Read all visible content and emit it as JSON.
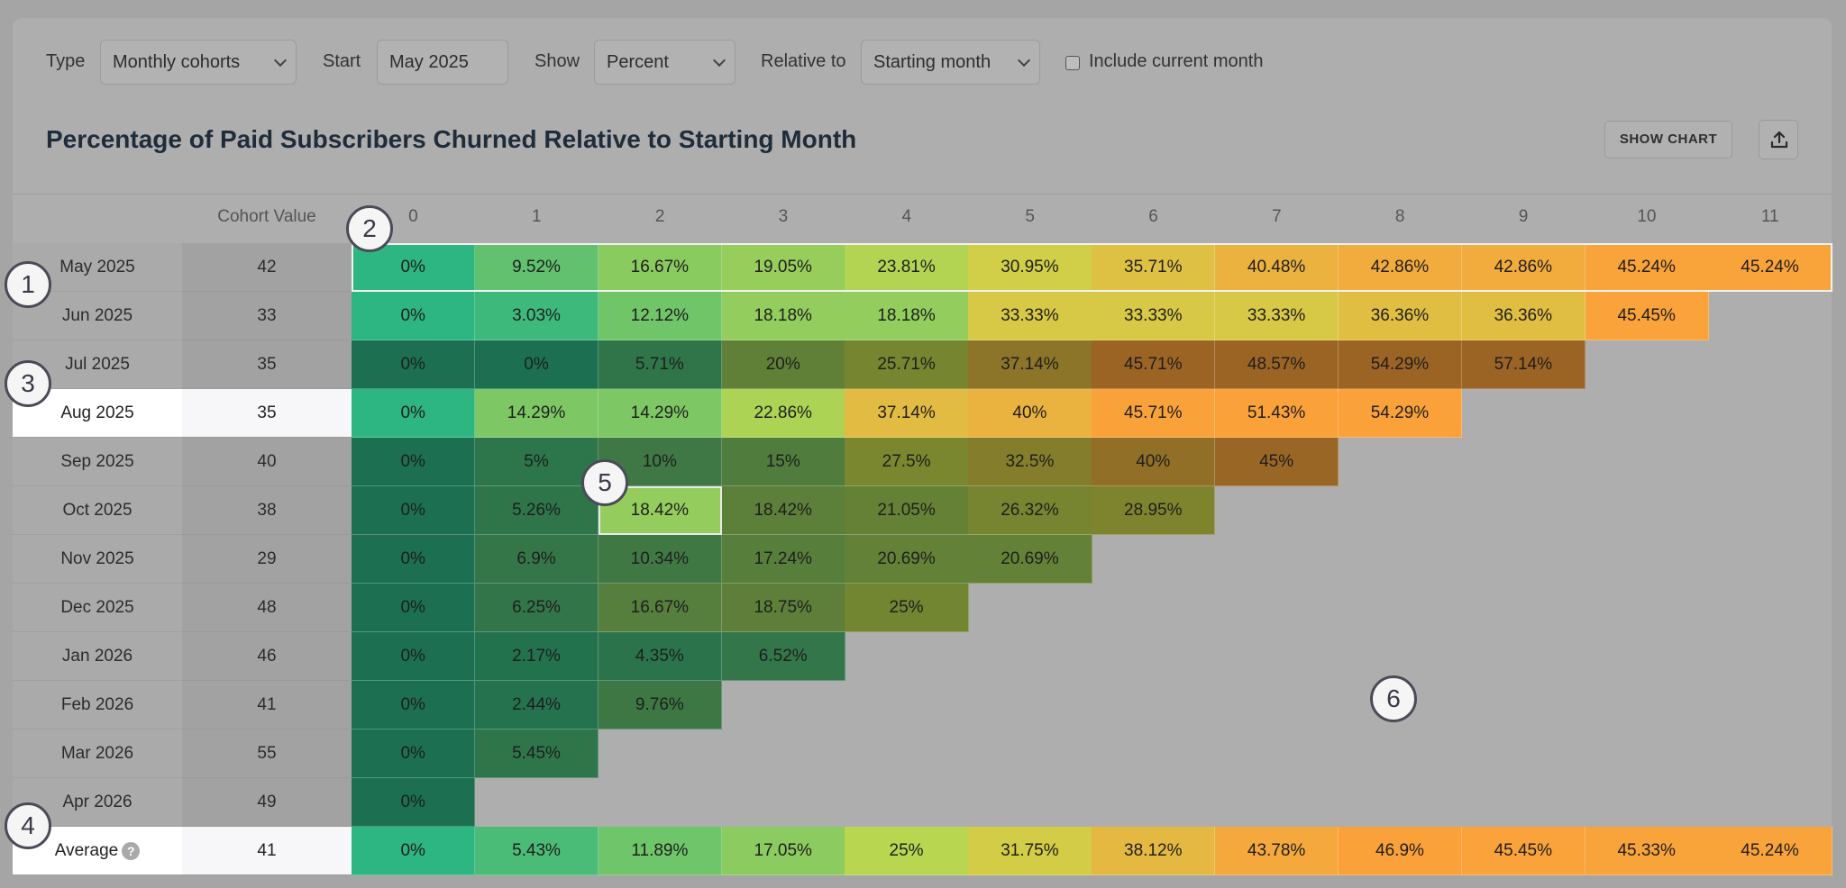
{
  "filters": {
    "type_label": "Type",
    "type_value": "Monthly cohorts",
    "start_label": "Start",
    "start_value": "May 2025",
    "show_label": "Show",
    "show_value": "Percent",
    "relative_label": "Relative to",
    "relative_value": "Starting month",
    "include_current_label": "Include current month",
    "include_current_checked": false
  },
  "title": "Percentage of Paid Subscribers Churned Relative to Starting Month",
  "actions": {
    "show_chart_label": "SHOW CHART",
    "export_icon": "upload-icon"
  },
  "table": {
    "cohort_value_header": "Cohort Value",
    "period_headers": [
      "0",
      "1",
      "2",
      "3",
      "4",
      "5",
      "6",
      "7",
      "8",
      "9",
      "10",
      "11"
    ],
    "rows": [
      {
        "label": "May 2025",
        "cohort_value": "42",
        "values": [
          "0%",
          "9.52%",
          "16.67%",
          "19.05%",
          "23.81%",
          "30.95%",
          "35.71%",
          "40.48%",
          "42.86%",
          "42.86%",
          "45.24%",
          "45.24%"
        ]
      },
      {
        "label": "Jun 2025",
        "cohort_value": "33",
        "values": [
          "0%",
          "3.03%",
          "12.12%",
          "18.18%",
          "18.18%",
          "33.33%",
          "33.33%",
          "33.33%",
          "36.36%",
          "36.36%",
          "45.45%"
        ]
      },
      {
        "label": "Jul 2025",
        "cohort_value": "35",
        "values": [
          "0%",
          "0%",
          "5.71%",
          "20%",
          "25.71%",
          "37.14%",
          "45.71%",
          "48.57%",
          "54.29%",
          "57.14%"
        ]
      },
      {
        "label": "Aug 2025",
        "cohort_value": "35",
        "values": [
          "0%",
          "14.29%",
          "14.29%",
          "22.86%",
          "37.14%",
          "40%",
          "45.71%",
          "51.43%",
          "54.29%"
        ]
      },
      {
        "label": "Sep 2025",
        "cohort_value": "40",
        "values": [
          "0%",
          "5%",
          "10%",
          "15%",
          "27.5%",
          "32.5%",
          "40%",
          "45%"
        ]
      },
      {
        "label": "Oct 2025",
        "cohort_value": "38",
        "values": [
          "0%",
          "5.26%",
          "18.42%",
          "18.42%",
          "21.05%",
          "26.32%",
          "28.95%"
        ]
      },
      {
        "label": "Nov 2025",
        "cohort_value": "29",
        "values": [
          "0%",
          "6.9%",
          "10.34%",
          "17.24%",
          "20.69%",
          "20.69%"
        ]
      },
      {
        "label": "Dec 2025",
        "cohort_value": "48",
        "values": [
          "0%",
          "6.25%",
          "16.67%",
          "18.75%",
          "25%"
        ]
      },
      {
        "label": "Jan 2026",
        "cohort_value": "46",
        "values": [
          "0%",
          "2.17%",
          "4.35%",
          "6.52%"
        ]
      },
      {
        "label": "Feb 2026",
        "cohort_value": "41",
        "values": [
          "0%",
          "2.44%",
          "9.76%"
        ]
      },
      {
        "label": "Mar 2026",
        "cohort_value": "55",
        "values": [
          "0%",
          "5.45%"
        ]
      },
      {
        "label": "Apr 2026",
        "cohort_value": "49",
        "values": [
          "0%"
        ]
      }
    ],
    "average": {
      "label": "Average",
      "help_icon": "question-icon",
      "help_glyph": "?",
      "cohort_value": "41",
      "values": [
        "0%",
        "5.43%",
        "11.89%",
        "17.05%",
        "25%",
        "31.75%",
        "38.12%",
        "43.78%",
        "46.9%",
        "45.45%",
        "45.33%",
        "45.24%"
      ]
    }
  },
  "highlighted_rows": [
    "May 2025",
    "Aug 2025",
    "Average"
  ],
  "bright_rows": [
    "May 2025",
    "Jun 2025",
    "Aug 2025"
  ],
  "selected_cell": {
    "row": "Oct 2025",
    "period": "2"
  },
  "markers": [
    "1",
    "2",
    "3",
    "4",
    "5",
    "6"
  ],
  "colors": {
    "scale_low": "#2db582",
    "scale_mid": "#c7d94a",
    "scale_high": "#fba13a",
    "page_bg": "#a5a5a5",
    "title": "#1f2d3a"
  }
}
